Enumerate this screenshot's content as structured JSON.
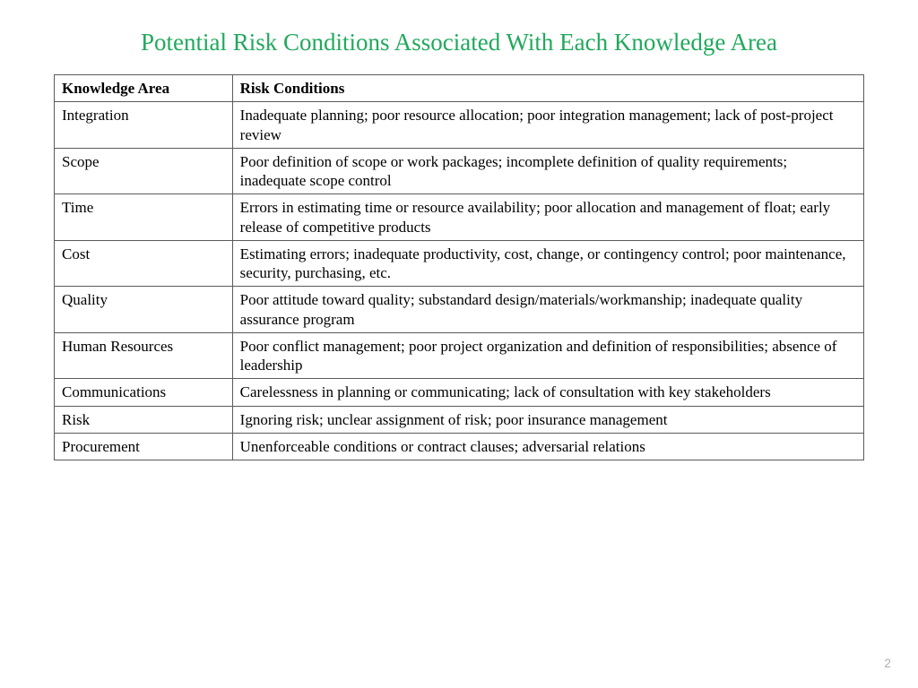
{
  "title": "Potential Risk Conditions Associated With Each Knowledge Area",
  "title_color": "#21a95d",
  "title_fontsize": 27,
  "table": {
    "border_color": "#5a5a5a",
    "text_color": "#000000",
    "header_fontweight": "bold",
    "body_fontsize": 17,
    "columns": [
      {
        "label": "Knowledge Area",
        "width_pct": 22
      },
      {
        "label": "Risk Conditions",
        "width_pct": 78
      }
    ],
    "rows": [
      {
        "area": "Integration",
        "risk": "Inadequate planning; poor resource allocation; poor integration management; lack of post-project review"
      },
      {
        "area": "Scope",
        "risk": "Poor definition of scope or work packages; incomplete definition of quality requirements; inadequate scope control"
      },
      {
        "area": "Time",
        "risk": "Errors in estimating time or resource availability; poor allocation and management of float; early release of competitive products"
      },
      {
        "area": "Cost",
        "risk": "Estimating errors; inadequate productivity, cost, change, or contingency control; poor maintenance, security, purchasing, etc."
      },
      {
        "area": "Quality",
        "risk": "Poor attitude toward quality; substandard design/materials/workmanship; inadequate quality assurance program"
      },
      {
        "area": "Human Resources",
        "risk": "Poor conflict management; poor project organization and definition of responsibilities; absence of leadership"
      },
      {
        "area": "Communications",
        "risk": "Carelessness in planning or communicating; lack of consultation with key stakeholders"
      },
      {
        "area": "Risk",
        "risk": "Ignoring risk; unclear assignment of risk; poor insurance management"
      },
      {
        "area": "Procurement",
        "risk": "Unenforceable conditions or contract clauses; adversarial relations"
      }
    ]
  },
  "page_number": "2",
  "background_color": "#ffffff"
}
